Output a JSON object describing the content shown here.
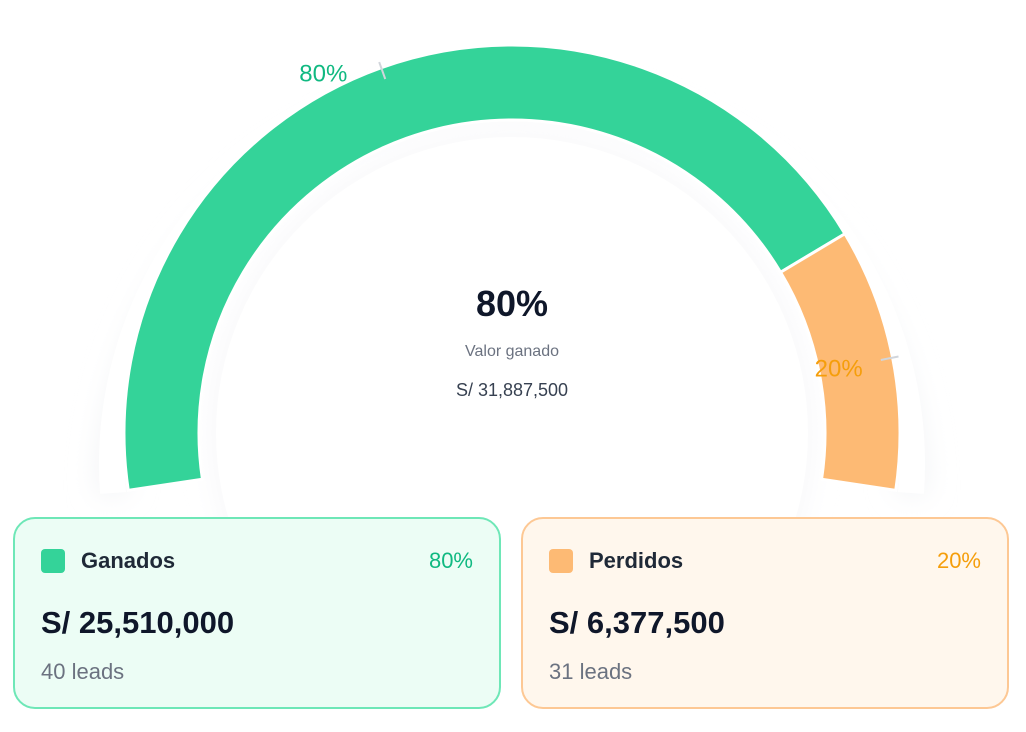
{
  "chart_data": {
    "type": "gauge",
    "categories": [
      "Ganados",
      "Perdidos"
    ],
    "values": [
      80,
      20
    ],
    "value_labels": [
      "80%",
      "20%"
    ],
    "colors": [
      "#34d399",
      "#fdba74"
    ],
    "label_colors": [
      "#10b981",
      "#f59e0b"
    ],
    "center_value": "80%",
    "center_label": "Valor ganado",
    "center_amount": "S/ 31,887,500"
  },
  "cards": [
    {
      "amount": "S/ 25,510,000",
      "leads": "40 leads"
    },
    {
      "amount": "S/ 6,377,500",
      "leads": "31 leads"
    }
  ]
}
